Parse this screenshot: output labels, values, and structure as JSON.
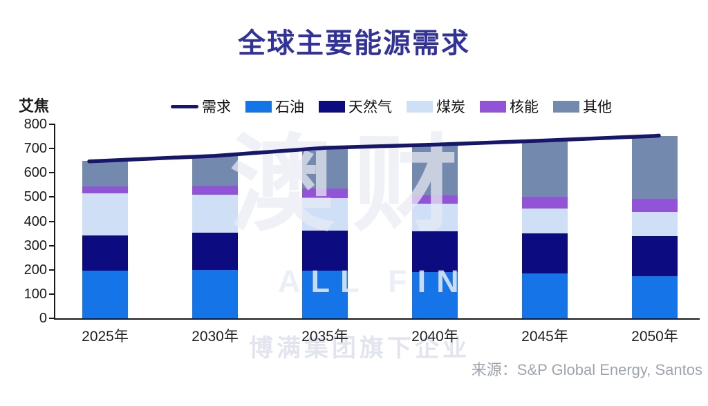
{
  "title": "全球主要能源需求",
  "y_axis_unit": "艾焦",
  "source": "来源：S&P Global Energy, Santos",
  "watermark": {
    "main": "澳财",
    "sub": "ALL FIN",
    "bottom": "博满集团旗下企业"
  },
  "colors": {
    "title": "#32329B",
    "demand_line": "#16166B",
    "oil": "#1474E8",
    "gas": "#0C0C80",
    "coal": "#CEDFF6",
    "nuclear": "#9254D6",
    "other": "#7389AE",
    "axis": "#1a1a1a",
    "source_text": "#9EA4AE"
  },
  "legend": [
    {
      "id": "demand",
      "label": "需求",
      "type": "line",
      "color": "#16166B"
    },
    {
      "id": "oil",
      "label": "石油",
      "type": "box",
      "color": "#1474E8"
    },
    {
      "id": "gas",
      "label": "天然气",
      "type": "box",
      "color": "#0C0C80"
    },
    {
      "id": "coal",
      "label": "煤炭",
      "type": "box",
      "color": "#CEDFF6"
    },
    {
      "id": "nuclear",
      "label": "核能",
      "type": "box",
      "color": "#9254D6"
    },
    {
      "id": "other",
      "label": "其他",
      "type": "box",
      "color": "#7389AE"
    }
  ],
  "chart_data": {
    "type": "bar",
    "subtype": "stacked-bars-with-demand-line",
    "title": "全球主要能源需求",
    "ylabel": "艾焦",
    "xlabel": "",
    "ylim": [
      0,
      800
    ],
    "ytick_step": 100,
    "grid": false,
    "legend_position": "top",
    "categories": [
      "2025年",
      "2030年",
      "2035年",
      "2040年",
      "2045年",
      "2050年"
    ],
    "series": [
      {
        "id": "oil",
        "name": "石油",
        "color": "#1474E8",
        "values": [
          197,
          199,
          197,
          192,
          184,
          175
        ]
      },
      {
        "id": "gas",
        "name": "天然气",
        "color": "#0C0C80",
        "values": [
          144,
          155,
          166,
          167,
          165,
          165
        ]
      },
      {
        "id": "coal",
        "name": "煤炭",
        "color": "#CEDFF6",
        "values": [
          174,
          156,
          132,
          114,
          104,
          98
        ]
      },
      {
        "id": "nuclear",
        "name": "核能",
        "color": "#9254D6",
        "values": [
          28,
          36,
          40,
          35,
          47,
          54
        ]
      },
      {
        "id": "other",
        "name": "其他",
        "color": "#7389AE",
        "values": [
          107,
          124,
          168,
          208,
          233,
          260
        ]
      }
    ],
    "line_series": {
      "id": "demand",
      "name": "需求",
      "color": "#16166B",
      "values": [
        650,
        670,
        703,
        716,
        733,
        752
      ]
    },
    "stack_totals": [
      650,
      670,
      703,
      716,
      733,
      752
    ]
  }
}
